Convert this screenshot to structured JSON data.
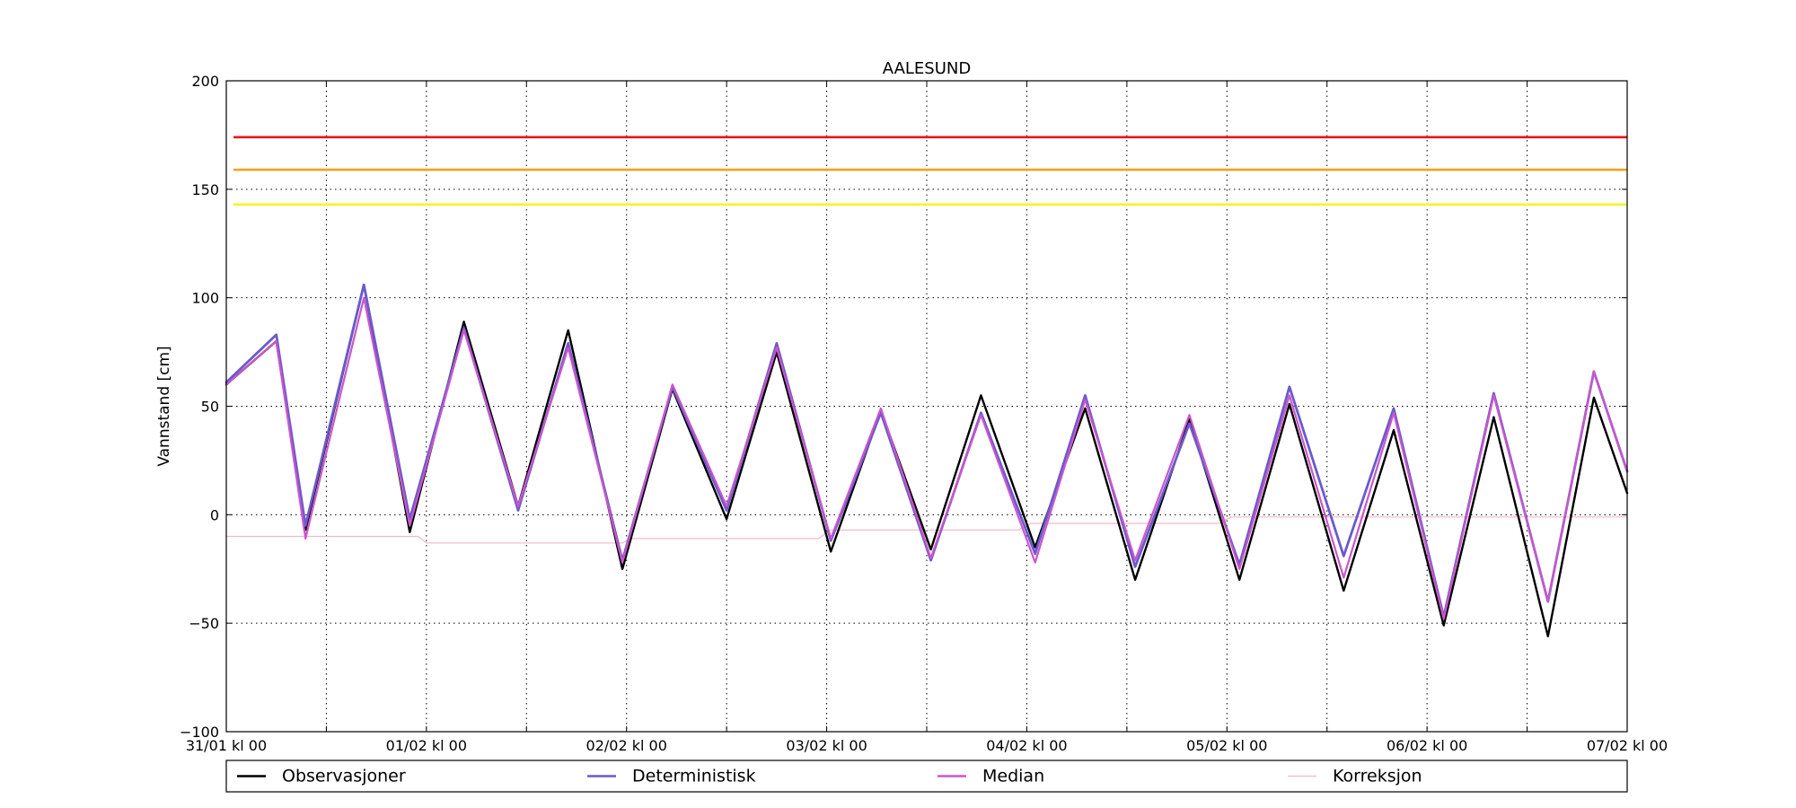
{
  "chart_data": {
    "type": "line",
    "title": "AALESUND",
    "xlabel": "",
    "ylabel": "Vannstand [cm]",
    "xlim": [
      "2015-01-31 00:00",
      "2015-02-07 00:00"
    ],
    "ylim": [
      -100,
      200
    ],
    "y_ticks": [
      -100,
      -50,
      0,
      50,
      100,
      150,
      200
    ],
    "y_tick_labels": [
      "−100",
      "−50",
      "0",
      "50",
      "100",
      "150",
      "200"
    ],
    "x_ticks": [
      "2015-01-31 00:00",
      "2015-01-31 12:00",
      "2015-02-01 00:00",
      "2015-02-01 12:00",
      "2015-02-02 00:00",
      "2015-02-02 12:00",
      "2015-02-03 00:00",
      "2015-02-03 12:00",
      "2015-02-04 00:00",
      "2015-02-04 12:00",
      "2015-02-05 00:00",
      "2015-02-05 12:00",
      "2015-02-06 00:00",
      "2015-02-06 12:00",
      "2015-02-07 00:00"
    ],
    "x_tick_labels": [
      "31/01 kl 00",
      "",
      "01/02 kl 00",
      "",
      "02/02 kl 00",
      "",
      "03/02 kl 00",
      "",
      "04/02 kl 00",
      "",
      "05/02 kl 00",
      "",
      "06/02 kl 00",
      "",
      "07/02 kl 00"
    ],
    "grid": true,
    "legend_position": "bottom",
    "thresholds": [
      {
        "value": 174,
        "color": "#e8141a"
      },
      {
        "value": 159,
        "color": "#f5a21a"
      },
      {
        "value": 143,
        "color": "#f5f520"
      }
    ],
    "series": [
      {
        "name": "Observasjoner",
        "color": "#000000",
        "x": [
          "2015-01-31 00:00",
          "2015-01-31 06:00",
          "2015-01-31 09:30",
          "2015-01-31 16:30",
          "2015-01-31 22:00",
          "2015-02-01 04:30",
          "2015-02-01 11:00",
          "2015-02-01 17:00",
          "2015-02-01 23:30",
          "2015-02-02 05:30",
          "2015-02-02 12:00",
          "2015-02-02 18:00",
          "2015-02-03 00:30",
          "2015-02-03 06:30",
          "2015-02-03 12:30",
          "2015-02-03 18:30",
          "2015-02-04 01:00",
          "2015-02-04 07:00",
          "2015-02-04 13:00",
          "2015-02-04 19:30",
          "2015-02-05 01:30",
          "2015-02-05 07:30",
          "2015-02-05 14:00",
          "2015-02-05 20:00",
          "2015-02-06 02:00",
          "2015-02-06 08:00",
          "2015-02-06 14:30",
          "2015-02-06 20:00",
          "2015-02-07 00:00"
        ],
        "y": [
          60,
          80,
          -7,
          106,
          -8,
          89,
          4,
          85,
          -25,
          58,
          -2,
          75,
          -17,
          48,
          -16,
          55,
          -15,
          49,
          -30,
          44,
          -30,
          51,
          -35,
          39,
          -51,
          45,
          -56,
          54,
          10
        ]
      },
      {
        "name": "Deterministisk",
        "color": "#6a5acd",
        "x": [
          "2015-01-31 00:00",
          "2015-01-31 06:00",
          "2015-01-31 09:30",
          "2015-01-31 16:30",
          "2015-01-31 22:00",
          "2015-02-01 04:30",
          "2015-02-01 11:00",
          "2015-02-01 17:00",
          "2015-02-01 23:30",
          "2015-02-02 05:30",
          "2015-02-02 12:00",
          "2015-02-02 18:00",
          "2015-02-03 00:30",
          "2015-02-03 06:30",
          "2015-02-03 12:30",
          "2015-02-03 18:30",
          "2015-02-04 01:00",
          "2015-02-04 07:00",
          "2015-02-04 13:00",
          "2015-02-04 19:30",
          "2015-02-05 01:30",
          "2015-02-05 07:30",
          "2015-02-05 14:00",
          "2015-02-05 20:00",
          "2015-02-06 02:00",
          "2015-02-06 08:00",
          "2015-02-06 14:30",
          "2015-02-06 20:00",
          "2015-02-07 00:00"
        ],
        "y": [
          61,
          83,
          -5,
          106,
          -2,
          86,
          2,
          79,
          -21,
          59,
          2,
          79,
          -12,
          47,
          -21,
          47,
          -18,
          55,
          -24,
          42,
          -23,
          59,
          -19,
          49,
          -47,
          56,
          -40,
          66,
          20
        ]
      },
      {
        "name": "Median",
        "color": "#cc55cc",
        "x": [
          "2015-01-31 00:00",
          "2015-01-31 06:00",
          "2015-01-31 09:30",
          "2015-01-31 16:30",
          "2015-01-31 22:00",
          "2015-02-01 04:30",
          "2015-02-01 11:00",
          "2015-02-01 17:00",
          "2015-02-01 23:30",
          "2015-02-02 05:30",
          "2015-02-02 12:00",
          "2015-02-02 18:00",
          "2015-02-03 00:30",
          "2015-02-03 06:30",
          "2015-02-03 12:30",
          "2015-02-03 18:30",
          "2015-02-04 01:00",
          "2015-02-04 07:00",
          "2015-02-04 13:00",
          "2015-02-04 19:30",
          "2015-02-05 01:30",
          "2015-02-05 07:30",
          "2015-02-05 14:00",
          "2015-02-05 20:00",
          "2015-02-06 02:00",
          "2015-02-06 08:00",
          "2015-02-06 14:30",
          "2015-02-06 20:00",
          "2015-02-07 00:00"
        ],
        "y": [
          60,
          80,
          -11,
          100,
          -5,
          85,
          4,
          77,
          -22,
          60,
          4,
          77,
          -11,
          49,
          -20,
          46,
          -22,
          53,
          -21,
          46,
          -25,
          55,
          -29,
          47,
          -48,
          55,
          -40,
          66,
          20
        ]
      },
      {
        "name": "Korreksjon",
        "color": "#f0b8c8",
        "x": [
          "2015-01-31 00:00",
          "2015-01-31 23:00",
          "2015-02-01 00:00",
          "2015-02-01 23:30",
          "2015-02-02 00:30",
          "2015-02-02 23:00",
          "2015-02-03 00:30",
          "2015-02-03 23:00",
          "2015-02-04 00:30",
          "2015-02-04 23:00",
          "2015-02-05 00:30",
          "2015-02-07 00:00"
        ],
        "y": [
          -10,
          -10,
          -13,
          -13,
          -11,
          -11,
          -7,
          -7,
          -4,
          -4,
          -1,
          -1
        ]
      }
    ]
  }
}
